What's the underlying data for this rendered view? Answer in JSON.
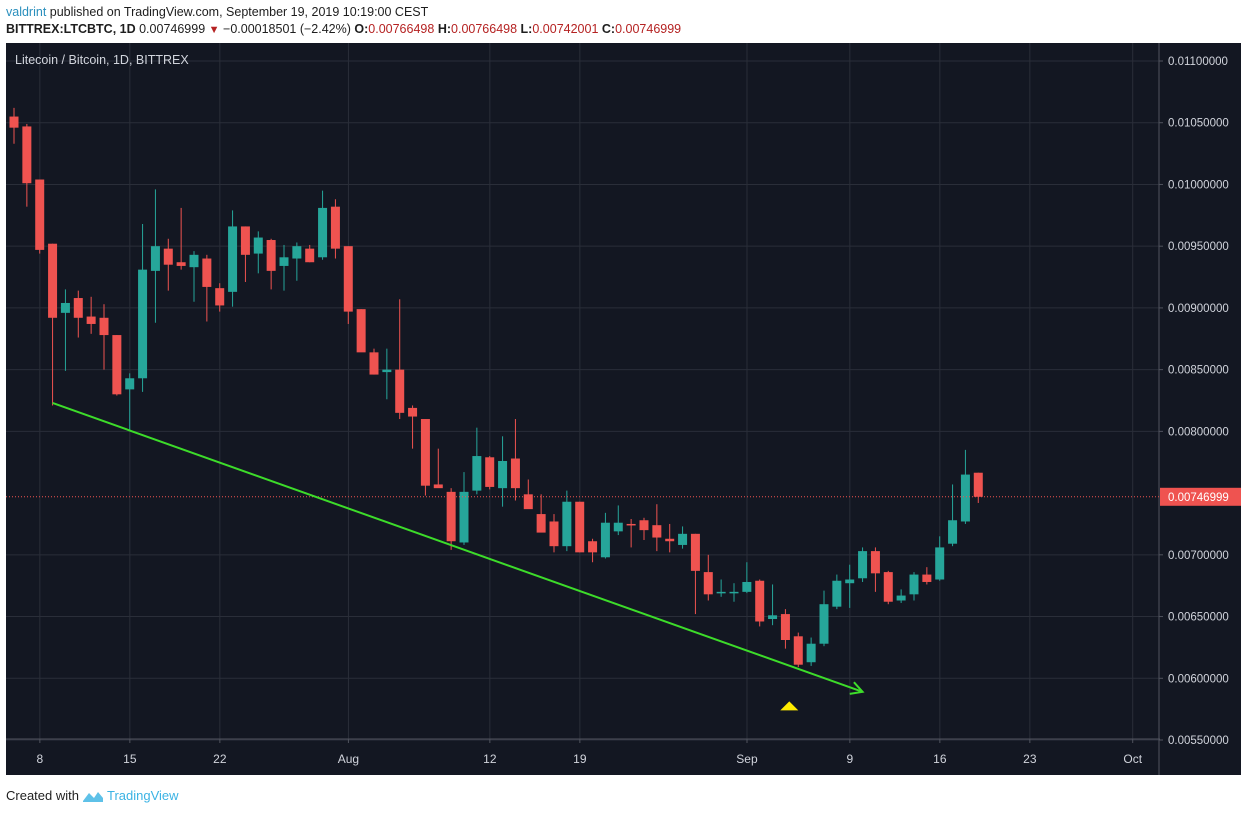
{
  "header": {
    "author": "valdrint",
    "published_text": " published on TradingView.com, September 19, 2019 10:19:00 CEST",
    "symbol": "BITTREX:LTCBTC, 1D",
    "last_price": "0.00746999",
    "change_icon": "down-triangle-icon",
    "change": "−0.00018501 (−2.42%)",
    "open_label": "O:",
    "open": "0.00766498",
    "high_label": "H:",
    "high": "0.00766498",
    "low_label": "L:",
    "low": "0.00742001",
    "close_label": "C:",
    "close": "0.00746999"
  },
  "chart_title": "Litecoin / Bitcoin, 1D, BITTREX",
  "footer": {
    "created_with": "Created with",
    "brand": "TradingView",
    "logo_icon": "tradingview-logo-icon"
  },
  "colors": {
    "background": "#131722",
    "grid": "#2a2e39",
    "up": "#26a69a",
    "down": "#ef5350",
    "trendline": "#3ddc2a",
    "marker": "#ffeb00",
    "price_line": "#ef5350",
    "axis_text": "#d1d4dc"
  },
  "chart_data": {
    "type": "candlestick",
    "title": "Litecoin / Bitcoin, 1D, BITTREX",
    "xlabel": "",
    "ylabel": "",
    "ylim": [
      0.0053,
      0.0112
    ],
    "y_ticks": [
      "0.01100000",
      "0.01050000",
      "0.01000000",
      "0.00950000",
      "0.00900000",
      "0.00850000",
      "0.00800000",
      "0.00700000",
      "0.00650000",
      "0.00600000",
      "0.00550000"
    ],
    "y_tick_values": [
      0.011,
      0.0105,
      0.01,
      0.0095,
      0.009,
      0.0085,
      0.008,
      0.007,
      0.0065,
      0.006,
      0.0055
    ],
    "x_ticks": [
      {
        "label": "8",
        "day": 1
      },
      {
        "label": "15",
        "day": 8
      },
      {
        "label": "22",
        "day": 15
      },
      {
        "label": "Aug",
        "day": 25
      },
      {
        "label": "12",
        "day": 36
      },
      {
        "label": "19",
        "day": 43
      },
      {
        "label": "Sep",
        "day": 56
      },
      {
        "label": "9",
        "day": 64
      },
      {
        "label": "16",
        "day": 71
      },
      {
        "label": "23",
        "day": 78
      },
      {
        "label": "Oct",
        "day": 86
      }
    ],
    "current_price": 0.00746999,
    "current_price_label": "0.00746999",
    "grid": true,
    "candles": [
      {
        "date": "Jul 7",
        "o": 0.01055,
        "h": 0.01062,
        "l": 0.01033,
        "c": 0.01046
      },
      {
        "date": "Jul 8",
        "o": 0.01047,
        "h": 0.01049,
        "l": 0.00982,
        "c": 0.01001
      },
      {
        "date": "Jul 9",
        "o": 0.01004,
        "h": 0.01004,
        "l": 0.00944,
        "c": 0.00947
      },
      {
        "date": "Jul 10",
        "o": 0.00952,
        "h": 0.00952,
        "l": 0.00821,
        "c": 0.00892
      },
      {
        "date": "Jul 11",
        "o": 0.00896,
        "h": 0.00915,
        "l": 0.00849,
        "c": 0.00904
      },
      {
        "date": "Jul 12",
        "o": 0.00908,
        "h": 0.00914,
        "l": 0.00876,
        "c": 0.00892
      },
      {
        "date": "Jul 13",
        "o": 0.00893,
        "h": 0.00909,
        "l": 0.00879,
        "c": 0.00887
      },
      {
        "date": "Jul 14",
        "o": 0.00892,
        "h": 0.00903,
        "l": 0.0085,
        "c": 0.00878
      },
      {
        "date": "Jul 15",
        "o": 0.00878,
        "h": 0.00878,
        "l": 0.00829,
        "c": 0.0083
      },
      {
        "date": "Jul 16",
        "o": 0.00834,
        "h": 0.00847,
        "l": 0.00801,
        "c": 0.00843
      },
      {
        "date": "Jul 17",
        "o": 0.00843,
        "h": 0.00968,
        "l": 0.00832,
        "c": 0.00931
      },
      {
        "date": "Jul 18",
        "o": 0.0093,
        "h": 0.00996,
        "l": 0.00888,
        "c": 0.0095
      },
      {
        "date": "Jul 19",
        "o": 0.00948,
        "h": 0.00956,
        "l": 0.00914,
        "c": 0.00935
      },
      {
        "date": "Jul 20",
        "o": 0.00937,
        "h": 0.00981,
        "l": 0.00931,
        "c": 0.00934
      },
      {
        "date": "Jul 21",
        "o": 0.00933,
        "h": 0.00946,
        "l": 0.00905,
        "c": 0.00943
      },
      {
        "date": "Jul 22",
        "o": 0.0094,
        "h": 0.00943,
        "l": 0.00889,
        "c": 0.00917
      },
      {
        "date": "Jul 23",
        "o": 0.00916,
        "h": 0.0092,
        "l": 0.00897,
        "c": 0.00902
      },
      {
        "date": "Jul 24",
        "o": 0.00913,
        "h": 0.00979,
        "l": 0.00901,
        "c": 0.00966
      },
      {
        "date": "Jul 25",
        "o": 0.00966,
        "h": 0.00966,
        "l": 0.00921,
        "c": 0.00943
      },
      {
        "date": "Jul 26",
        "o": 0.00944,
        "h": 0.00962,
        "l": 0.00928,
        "c": 0.00957
      },
      {
        "date": "Jul 27",
        "o": 0.00955,
        "h": 0.00956,
        "l": 0.00915,
        "c": 0.0093
      },
      {
        "date": "Jul 28",
        "o": 0.00934,
        "h": 0.00951,
        "l": 0.00914,
        "c": 0.00941
      },
      {
        "date": "Jul 29",
        "o": 0.0094,
        "h": 0.00953,
        "l": 0.00922,
        "c": 0.0095
      },
      {
        "date": "Jul 30",
        "o": 0.00948,
        "h": 0.00951,
        "l": 0.00937,
        "c": 0.00937
      },
      {
        "date": "Jul 31",
        "o": 0.00941,
        "h": 0.00995,
        "l": 0.00939,
        "c": 0.00981
      },
      {
        "date": "Aug 1",
        "o": 0.00982,
        "h": 0.00988,
        "l": 0.0094,
        "c": 0.00948
      },
      {
        "date": "Aug 2",
        "o": 0.0095,
        "h": 0.0095,
        "l": 0.00887,
        "c": 0.00897
      },
      {
        "date": "Aug 3",
        "o": 0.00899,
        "h": 0.00899,
        "l": 0.00878,
        "c": 0.00864
      },
      {
        "date": "Aug 4",
        "o": 0.00864,
        "h": 0.00867,
        "l": 0.00846,
        "c": 0.00846
      },
      {
        "date": "Aug 5",
        "o": 0.00848,
        "h": 0.00867,
        "l": 0.00826,
        "c": 0.0085
      },
      {
        "date": "Aug 6",
        "o": 0.0085,
        "h": 0.00907,
        "l": 0.0081,
        "c": 0.00815
      },
      {
        "date": "Aug 7",
        "o": 0.00819,
        "h": 0.00821,
        "l": 0.00786,
        "c": 0.00812
      },
      {
        "date": "Aug 8",
        "o": 0.0081,
        "h": 0.0081,
        "l": 0.00748,
        "c": 0.00756
      },
      {
        "date": "Aug 9",
        "o": 0.00757,
        "h": 0.00786,
        "l": 0.00755,
        "c": 0.00754
      },
      {
        "date": "Aug 10",
        "o": 0.00751,
        "h": 0.00754,
        "l": 0.00704,
        "c": 0.00711
      },
      {
        "date": "Aug 11",
        "o": 0.0071,
        "h": 0.00767,
        "l": 0.00708,
        "c": 0.00751
      },
      {
        "date": "Aug 12",
        "o": 0.00752,
        "h": 0.00803,
        "l": 0.00749,
        "c": 0.0078
      },
      {
        "date": "Aug 13",
        "o": 0.00779,
        "h": 0.0078,
        "l": 0.00753,
        "c": 0.00755
      },
      {
        "date": "Aug 14",
        "o": 0.00754,
        "h": 0.00796,
        "l": 0.00739,
        "c": 0.00776
      },
      {
        "date": "Aug 15",
        "o": 0.00778,
        "h": 0.0081,
        "l": 0.00744,
        "c": 0.00754
      },
      {
        "date": "Aug 16",
        "o": 0.00749,
        "h": 0.00761,
        "l": 0.00738,
        "c": 0.00737
      },
      {
        "date": "Aug 17",
        "o": 0.00733,
        "h": 0.00749,
        "l": 0.0072,
        "c": 0.00718
      },
      {
        "date": "Aug 18",
        "o": 0.00727,
        "h": 0.00733,
        "l": 0.00702,
        "c": 0.00707
      },
      {
        "date": "Aug 19",
        "o": 0.00707,
        "h": 0.00752,
        "l": 0.00703,
        "c": 0.00743
      },
      {
        "date": "Aug 20",
        "o": 0.00743,
        "h": 0.00743,
        "l": 0.00702,
        "c": 0.00702
      },
      {
        "date": "Aug 21",
        "o": 0.00711,
        "h": 0.00713,
        "l": 0.00694,
        "c": 0.00702
      },
      {
        "date": "Aug 22",
        "o": 0.00698,
        "h": 0.00734,
        "l": 0.00697,
        "c": 0.00726
      },
      {
        "date": "Aug 23",
        "o": 0.00719,
        "h": 0.0074,
        "l": 0.00716,
        "c": 0.00726
      },
      {
        "date": "Aug 24",
        "o": 0.00725,
        "h": 0.00729,
        "l": 0.00706,
        "c": 0.00724
      },
      {
        "date": "Aug 25",
        "o": 0.00728,
        "h": 0.0073,
        "l": 0.00712,
        "c": 0.0072
      },
      {
        "date": "Aug 26",
        "o": 0.00724,
        "h": 0.00741,
        "l": 0.00703,
        "c": 0.00714
      },
      {
        "date": "Aug 27",
        "o": 0.00713,
        "h": 0.00725,
        "l": 0.00702,
        "c": 0.00711
      },
      {
        "date": "Aug 28",
        "o": 0.00708,
        "h": 0.00723,
        "l": 0.00705,
        "c": 0.00717
      },
      {
        "date": "Aug 29",
        "o": 0.00717,
        "h": 0.00717,
        "l": 0.00652,
        "c": 0.00687
      },
      {
        "date": "Aug 30",
        "o": 0.00686,
        "h": 0.007,
        "l": 0.00663,
        "c": 0.00668
      },
      {
        "date": "Aug 31",
        "o": 0.0067,
        "h": 0.0068,
        "l": 0.00666,
        "c": 0.0067
      },
      {
        "date": "Sep 1",
        "o": 0.00669,
        "h": 0.00677,
        "l": 0.00662,
        "c": 0.0067
      },
      {
        "date": "Sep 2",
        "o": 0.0067,
        "h": 0.00694,
        "l": 0.00669,
        "c": 0.00678
      },
      {
        "date": "Sep 3",
        "o": 0.00679,
        "h": 0.0068,
        "l": 0.00642,
        "c": 0.00646
      },
      {
        "date": "Sep 4",
        "o": 0.00648,
        "h": 0.00676,
        "l": 0.00643,
        "c": 0.00651
      },
      {
        "date": "Sep 5",
        "o": 0.00652,
        "h": 0.00656,
        "l": 0.00624,
        "c": 0.00631
      },
      {
        "date": "Sep 6",
        "o": 0.00634,
        "h": 0.00637,
        "l": 0.00609,
        "c": 0.00611
      },
      {
        "date": "Sep 7",
        "o": 0.00613,
        "h": 0.00633,
        "l": 0.0061,
        "c": 0.00628
      },
      {
        "date": "Sep 8",
        "o": 0.00628,
        "h": 0.00671,
        "l": 0.00626,
        "c": 0.0066
      },
      {
        "date": "Sep 9",
        "o": 0.00658,
        "h": 0.00684,
        "l": 0.00656,
        "c": 0.00679
      },
      {
        "date": "Sep 10",
        "o": 0.00677,
        "h": 0.00692,
        "l": 0.00657,
        "c": 0.0068
      },
      {
        "date": "Sep 11",
        "o": 0.00681,
        "h": 0.00706,
        "l": 0.00678,
        "c": 0.00703
      },
      {
        "date": "Sep 12",
        "o": 0.00703,
        "h": 0.00706,
        "l": 0.0067,
        "c": 0.00685
      },
      {
        "date": "Sep 13",
        "o": 0.00686,
        "h": 0.00687,
        "l": 0.0066,
        "c": 0.00662
      },
      {
        "date": "Sep 14",
        "o": 0.00663,
        "h": 0.00672,
        "l": 0.00661,
        "c": 0.00667
      },
      {
        "date": "Sep 15",
        "o": 0.00668,
        "h": 0.00686,
        "l": 0.00663,
        "c": 0.00684
      },
      {
        "date": "Sep 16",
        "o": 0.00684,
        "h": 0.0069,
        "l": 0.00676,
        "c": 0.00678
      },
      {
        "date": "Sep 17",
        "o": 0.0068,
        "h": 0.00715,
        "l": 0.00679,
        "c": 0.00706
      },
      {
        "date": "Sep 18",
        "o": 0.00709,
        "h": 0.00757,
        "l": 0.00707,
        "c": 0.00728
      },
      {
        "date": "Sep 19",
        "o": 0.00727,
        "h": 0.00785,
        "l": 0.00725,
        "c": 0.00765
      },
      {
        "date": "Sep 19*",
        "o": 0.00766498,
        "h": 0.00766498,
        "l": 0.00742001,
        "c": 0.00746999
      }
    ],
    "annotations": [
      {
        "type": "trendline_arrow",
        "from": {
          "day": 3,
          "price": 0.00823
        },
        "to": {
          "day": 66,
          "price": 0.00589
        },
        "color": "#3ddc2a"
      },
      {
        "type": "triangle_marker",
        "day": 60.3,
        "price": 0.00578,
        "color": "#ffeb00"
      }
    ]
  }
}
